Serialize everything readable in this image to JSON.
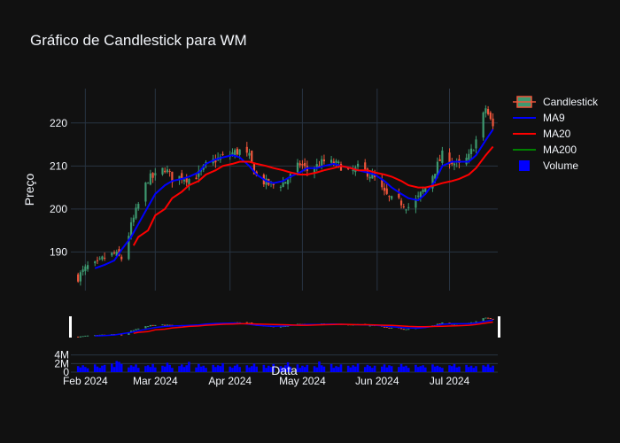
{
  "chart_data": {
    "type": "candlestick",
    "title": "Gráfico de Candlestick para WM",
    "xlabel": "Data",
    "ylabel": "Preço",
    "ylim": [
      181,
      228
    ],
    "volume_ylim": [
      0,
      6000000
    ],
    "y_ticks": [
      190,
      200,
      210,
      220
    ],
    "y_tick_labels": [
      "190",
      "200",
      "210",
      "220"
    ],
    "volume_ticks": [
      0,
      2000000,
      4000000
    ],
    "volume_tick_labels": [
      "0",
      "2M",
      "4M"
    ],
    "x_ticks": [
      {
        "date": "2024-02-01",
        "label": "Feb 2024"
      },
      {
        "date": "2024-03-01",
        "label": "Mar 2024"
      },
      {
        "date": "2024-04-01",
        "label": "Apr 2024"
      },
      {
        "date": "2024-05-01",
        "label": "May 2024"
      },
      {
        "date": "2024-06-01",
        "label": "Jun 2024"
      },
      {
        "date": "2024-07-01",
        "label": "Jul 2024"
      }
    ],
    "x_range": [
      "2024-01-26",
      "2024-07-21"
    ],
    "grid": true,
    "legend_position": "right",
    "legend": [
      {
        "name": "Candlestick",
        "color": "#ef553b",
        "color2": "#3d9970"
      },
      {
        "name": "MA9",
        "color": "#0000ff"
      },
      {
        "name": "MA20",
        "color": "#ff0000"
      },
      {
        "name": "MA200",
        "color": "#008000"
      },
      {
        "name": "Volume",
        "color": "#0000ff"
      }
    ],
    "close_points": [
      [
        "2024-01-29",
        184.2
      ],
      [
        "2024-02-02",
        186.5
      ],
      [
        "2024-02-06",
        187.0
      ],
      [
        "2024-02-09",
        188.8
      ],
      [
        "2024-02-13",
        189.5
      ],
      [
        "2024-02-16",
        188.5
      ],
      [
        "2024-02-20",
        196.0
      ],
      [
        "2024-02-23",
        201.0
      ],
      [
        "2024-02-27",
        207.0
      ],
      [
        "2024-03-01",
        207.5
      ],
      [
        "2024-03-05",
        209.5
      ],
      [
        "2024-03-08",
        207.0
      ],
      [
        "2024-03-12",
        207.5
      ],
      [
        "2024-03-15",
        207.0
      ],
      [
        "2024-03-19",
        208.0
      ],
      [
        "2024-03-22",
        210.0
      ],
      [
        "2024-03-26",
        211.5
      ],
      [
        "2024-03-29",
        212.0
      ],
      [
        "2024-04-02",
        213.0
      ],
      [
        "2024-04-05",
        213.5
      ],
      [
        "2024-04-09",
        212.0
      ],
      [
        "2024-04-12",
        207.5
      ],
      [
        "2024-04-16",
        206.0
      ],
      [
        "2024-04-19",
        205.5
      ],
      [
        "2024-04-23",
        206.0
      ],
      [
        "2024-04-26",
        207.5
      ],
      [
        "2024-04-30",
        210.5
      ],
      [
        "2024-05-03",
        209.0
      ],
      [
        "2024-05-07",
        210.0
      ],
      [
        "2024-05-10",
        211.0
      ],
      [
        "2024-05-14",
        210.5
      ],
      [
        "2024-05-17",
        210.0
      ],
      [
        "2024-05-21",
        208.5
      ],
      [
        "2024-05-24",
        209.5
      ],
      [
        "2024-05-28",
        208.5
      ],
      [
        "2024-05-31",
        207.0
      ],
      [
        "2024-06-04",
        203.5
      ],
      [
        "2024-06-07",
        202.0
      ],
      [
        "2024-06-11",
        201.5
      ],
      [
        "2024-06-14",
        200.5
      ],
      [
        "2024-06-18",
        202.5
      ],
      [
        "2024-06-21",
        205.0
      ],
      [
        "2024-06-25",
        209.0
      ],
      [
        "2024-06-28",
        212.5
      ],
      [
        "2024-07-02",
        211.0
      ],
      [
        "2024-07-05",
        210.0
      ],
      [
        "2024-07-09",
        212.0
      ],
      [
        "2024-07-12",
        216.0
      ],
      [
        "2024-07-16",
        223.5
      ],
      [
        "2024-07-19",
        219.0
      ]
    ],
    "series": [
      {
        "name": "MA9",
        "color": "#0000ff",
        "points": [
          [
            "2024-02-05",
            186.2
          ],
          [
            "2024-02-09",
            187.0
          ],
          [
            "2024-02-13",
            188.0
          ],
          [
            "2024-02-16",
            190.5
          ],
          [
            "2024-02-20",
            193.5
          ],
          [
            "2024-02-23",
            196.5
          ],
          [
            "2024-02-27",
            200.5
          ],
          [
            "2024-03-01",
            203.5
          ],
          [
            "2024-03-05",
            205.5
          ],
          [
            "2024-03-08",
            206.5
          ],
          [
            "2024-03-12",
            207.0
          ],
          [
            "2024-03-15",
            207.5
          ],
          [
            "2024-03-19",
            208.5
          ],
          [
            "2024-03-22",
            210.5
          ],
          [
            "2024-03-26",
            211.5
          ],
          [
            "2024-03-29",
            212.0
          ],
          [
            "2024-04-02",
            212.5
          ],
          [
            "2024-04-05",
            212.0
          ],
          [
            "2024-04-09",
            210.0
          ],
          [
            "2024-04-12",
            208.0
          ],
          [
            "2024-04-16",
            206.5
          ],
          [
            "2024-04-19",
            206.0
          ],
          [
            "2024-04-23",
            206.5
          ],
          [
            "2024-04-26",
            207.5
          ],
          [
            "2024-04-30",
            208.5
          ],
          [
            "2024-05-03",
            209.5
          ],
          [
            "2024-05-07",
            209.5
          ],
          [
            "2024-05-10",
            210.0
          ],
          [
            "2024-05-14",
            210.5
          ],
          [
            "2024-05-17",
            210.0
          ],
          [
            "2024-05-21",
            209.5
          ],
          [
            "2024-05-24",
            209.0
          ],
          [
            "2024-05-28",
            208.5
          ],
          [
            "2024-05-31",
            208.0
          ],
          [
            "2024-06-04",
            206.5
          ],
          [
            "2024-06-07",
            205.0
          ],
          [
            "2024-06-11",
            203.5
          ],
          [
            "2024-06-14",
            202.5
          ],
          [
            "2024-06-18",
            202.0
          ],
          [
            "2024-06-21",
            203.5
          ],
          [
            "2024-06-25",
            206.5
          ],
          [
            "2024-06-28",
            210.0
          ],
          [
            "2024-07-02",
            211.0
          ],
          [
            "2024-07-05",
            211.0
          ],
          [
            "2024-07-09",
            211.0
          ],
          [
            "2024-07-12",
            212.5
          ],
          [
            "2024-07-16",
            216.0
          ],
          [
            "2024-07-19",
            218.5
          ]
        ]
      },
      {
        "name": "MA20",
        "color": "#ff0000",
        "points": [
          [
            "2024-02-21",
            191.5
          ],
          [
            "2024-02-23",
            193.5
          ],
          [
            "2024-02-27",
            195.0
          ],
          [
            "2024-03-01",
            198.5
          ],
          [
            "2024-03-05",
            200.0
          ],
          [
            "2024-03-08",
            202.5
          ],
          [
            "2024-03-12",
            204.0
          ],
          [
            "2024-03-15",
            205.5
          ],
          [
            "2024-03-19",
            206.5
          ],
          [
            "2024-03-22",
            208.0
          ],
          [
            "2024-03-26",
            209.0
          ],
          [
            "2024-03-29",
            210.0
          ],
          [
            "2024-04-02",
            210.5
          ],
          [
            "2024-04-05",
            211.0
          ],
          [
            "2024-04-09",
            211.0
          ],
          [
            "2024-04-12",
            210.5
          ],
          [
            "2024-04-16",
            210.0
          ],
          [
            "2024-04-19",
            209.5
          ],
          [
            "2024-04-23",
            209.0
          ],
          [
            "2024-04-26",
            208.5
          ],
          [
            "2024-04-30",
            208.0
          ],
          [
            "2024-05-03",
            208.0
          ],
          [
            "2024-05-07",
            208.5
          ],
          [
            "2024-05-10",
            209.0
          ],
          [
            "2024-05-14",
            209.5
          ],
          [
            "2024-05-17",
            210.0
          ],
          [
            "2024-05-21",
            209.5
          ],
          [
            "2024-05-24",
            209.0
          ],
          [
            "2024-05-28",
            209.0
          ],
          [
            "2024-05-31",
            208.5
          ],
          [
            "2024-06-04",
            208.0
          ],
          [
            "2024-06-07",
            207.5
          ],
          [
            "2024-06-11",
            206.5
          ],
          [
            "2024-06-14",
            205.5
          ],
          [
            "2024-06-18",
            205.0
          ],
          [
            "2024-06-21",
            205.0
          ],
          [
            "2024-06-25",
            205.5
          ],
          [
            "2024-06-28",
            206.0
          ],
          [
            "2024-07-02",
            206.5
          ],
          [
            "2024-07-05",
            207.0
          ],
          [
            "2024-07-09",
            208.0
          ],
          [
            "2024-07-12",
            209.5
          ],
          [
            "2024-07-16",
            212.5
          ],
          [
            "2024-07-19",
            214.5
          ]
        ]
      }
    ],
    "volume": [
      1.4,
      1.1,
      1.6,
      1.2,
      0.9,
      1.8,
      1.3,
      1.0,
      1.5,
      1.7,
      2.0,
      1.2,
      2.6,
      2.4,
      1.9,
      1.1,
      1.6,
      1.3,
      1.8,
      1.0,
      1.4,
      1.6,
      1.2,
      1.9,
      1.1,
      1.5,
      1.3,
      2.2,
      1.7,
      1.0,
      1.4,
      1.8,
      1.2,
      1.6,
      2.4,
      1.1,
      1.9,
      1.3,
      1.5,
      1.0,
      1.7,
      1.2,
      1.6,
      1.4,
      2.1,
      1.3,
      1.0,
      1.5,
      1.8,
      1.2,
      1.6,
      1.1,
      1.4,
      2.0,
      1.3,
      1.7,
      1.0,
      1.5,
      1.2,
      1.9,
      1.4,
      1.1,
      1.6,
      2.3,
      1.3,
      1.8,
      1.0,
      1.5,
      1.2,
      1.7,
      1.4,
      1.1,
      2.5,
      1.6,
      1.3,
      1.9,
      1.0,
      1.4,
      1.2,
      1.8,
      1.5,
      1.1,
      1.6,
      1.3,
      2.0,
      1.2,
      1.7,
      1.4,
      1.0,
      1.5,
      1.3,
      1.8,
      1.1,
      1.6,
      1.4,
      1.2,
      1.9,
      1.3,
      1.5,
      1.0,
      1.7,
      1.2,
      1.4,
      1.6,
      1.1,
      1.8,
      1.3,
      1.5,
      1.2,
      1.0,
      1.6,
      1.4,
      1.9,
      1.1,
      1.3,
      1.7,
      1.2,
      1.5,
      1.0,
      1.4,
      1.6,
      1.3,
      1.8,
      1.1,
      1.5,
      1.2
    ]
  }
}
